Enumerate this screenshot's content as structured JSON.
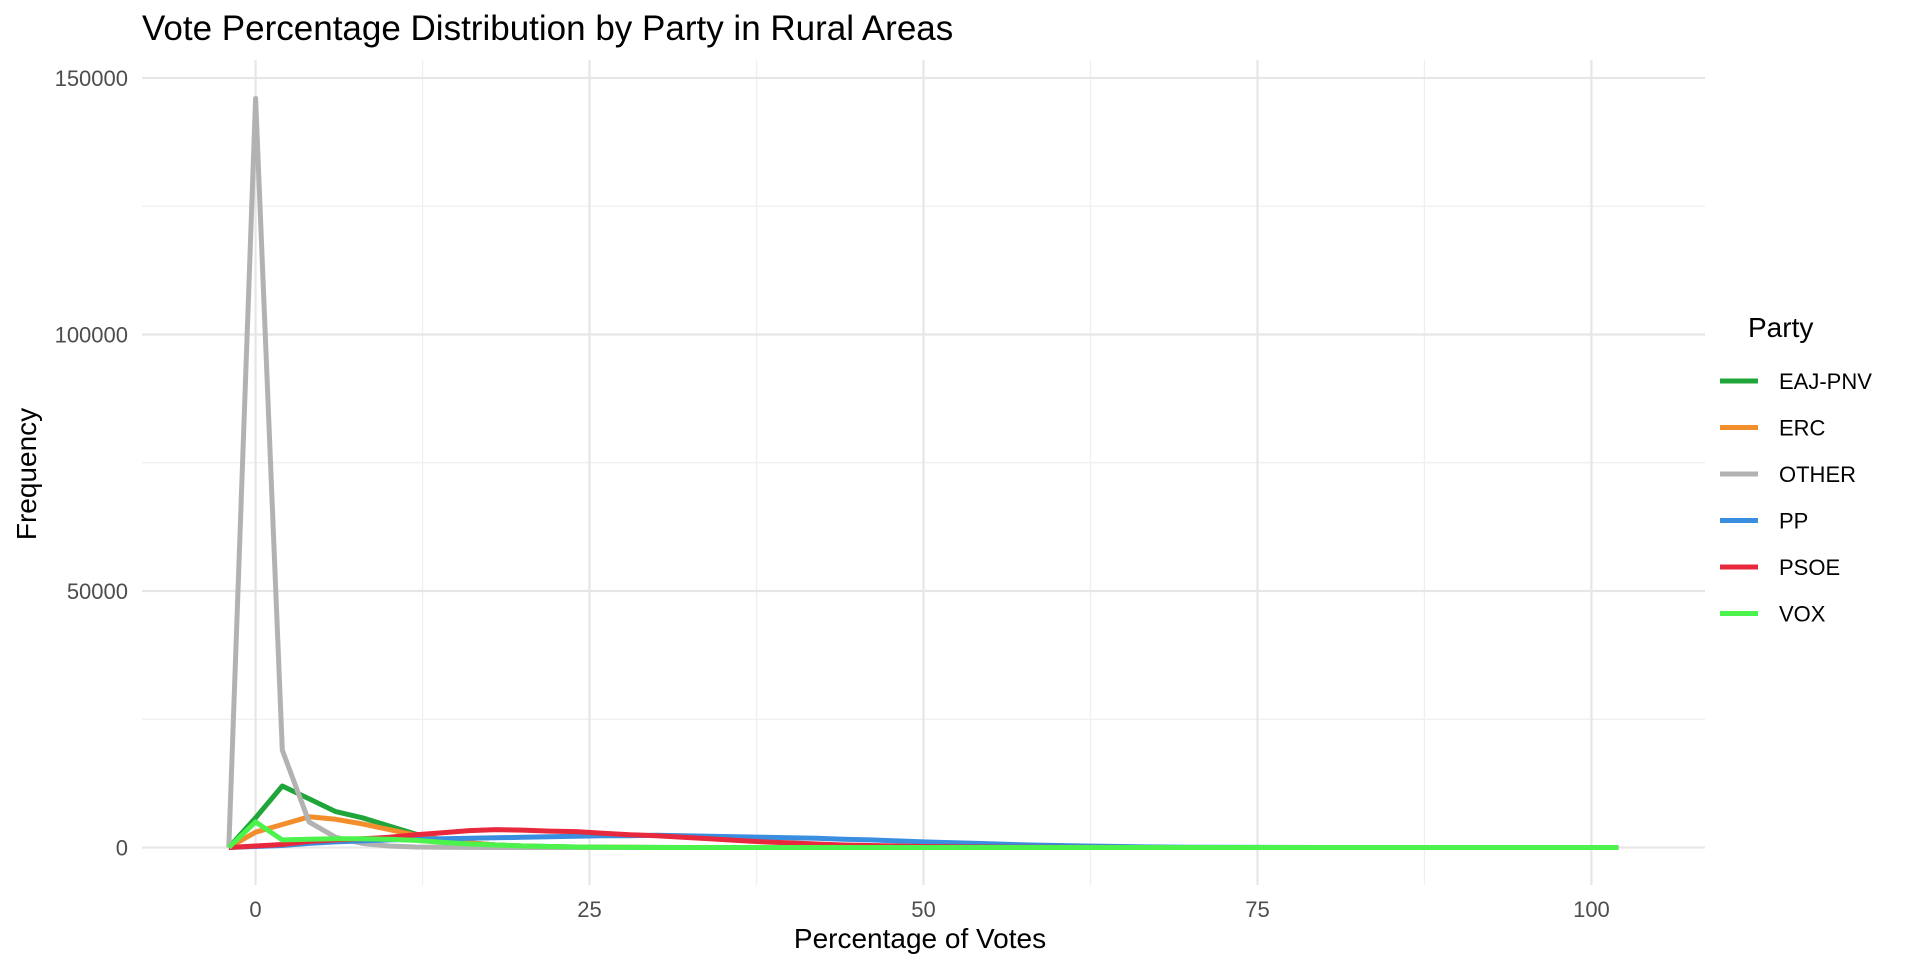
{
  "chart_data": {
    "type": "line",
    "title": "Vote Percentage Distribution by Party in Rural Areas",
    "xlabel": "Percentage of Votes",
    "ylabel": "Frequency",
    "xlim": [
      -8.5,
      108.5
    ],
    "ylim": [
      -7300,
      153500
    ],
    "x_ticks": [
      0,
      25,
      50,
      75,
      100
    ],
    "x_tick_labels": [
      "0",
      "25",
      "50",
      "75",
      "100"
    ],
    "y_ticks": [
      0,
      50000,
      100000,
      150000
    ],
    "y_tick_labels": [
      "0",
      "50000",
      "100000",
      "150000"
    ],
    "grid": true,
    "legend_title": "Party",
    "legend_position": "right",
    "x": [
      -2,
      0,
      2,
      4,
      6,
      8,
      10,
      12,
      14,
      16,
      18,
      20,
      22,
      24,
      26,
      28,
      30,
      32,
      34,
      36,
      38,
      40,
      42,
      44,
      46,
      48,
      50,
      54,
      58,
      62,
      66,
      70,
      80,
      90,
      102
    ],
    "series": [
      {
        "name": "EAJ-PNV",
        "color": "#1FA539",
        "values": [
          0,
          5800,
          12000,
          9500,
          7000,
          5800,
          4200,
          2600,
          1500,
          900,
          500,
          300,
          200,
          100,
          60,
          30,
          20,
          10,
          5,
          0,
          0,
          0,
          0,
          0,
          0,
          0,
          0,
          0,
          0,
          0,
          0,
          0,
          0,
          0,
          0
        ]
      },
      {
        "name": "ERC",
        "color": "#F28E2B",
        "values": [
          0,
          3000,
          4500,
          6000,
          5500,
          4600,
          3500,
          2400,
          1500,
          900,
          500,
          300,
          150,
          80,
          40,
          20,
          10,
          5,
          0,
          0,
          0,
          0,
          0,
          0,
          0,
          0,
          0,
          0,
          0,
          0,
          0,
          0,
          0,
          0,
          0
        ]
      },
      {
        "name": "OTHER",
        "color": "#B2B2B2",
        "values": [
          0,
          146000,
          19000,
          5000,
          2000,
          800,
          300,
          100,
          50,
          20,
          0,
          0,
          0,
          0,
          0,
          0,
          0,
          0,
          0,
          0,
          0,
          0,
          0,
          0,
          0,
          0,
          0,
          0,
          0,
          0,
          0,
          0,
          0,
          0,
          0
        ]
      },
      {
        "name": "PP",
        "color": "#3A8EE0",
        "values": [
          0,
          200,
          400,
          800,
          1100,
          1300,
          1500,
          1600,
          1700,
          1800,
          1900,
          2000,
          2100,
          2200,
          2300,
          2300,
          2400,
          2300,
          2200,
          2100,
          2000,
          1900,
          1800,
          1600,
          1500,
          1300,
          1100,
          800,
          500,
          300,
          150,
          50,
          0,
          0,
          0
        ]
      },
      {
        "name": "PSOE",
        "color": "#E8283C",
        "values": [
          0,
          300,
          600,
          1200,
          1500,
          1700,
          2000,
          2500,
          2900,
          3300,
          3500,
          3400,
          3200,
          3100,
          2800,
          2500,
          2300,
          2000,
          1700,
          1400,
          1100,
          900,
          700,
          500,
          400,
          300,
          200,
          100,
          50,
          20,
          0,
          0,
          0,
          0,
          0
        ]
      },
      {
        "name": "VOX",
        "color": "#4DF34D",
        "values": [
          0,
          5000,
          1500,
          1600,
          1700,
          1700,
          1600,
          1400,
          1000,
          700,
          500,
          300,
          200,
          100,
          50,
          20,
          10,
          0,
          0,
          0,
          0,
          0,
          0,
          0,
          0,
          0,
          0,
          0,
          0,
          0,
          0,
          0,
          0,
          0,
          0
        ]
      }
    ]
  }
}
